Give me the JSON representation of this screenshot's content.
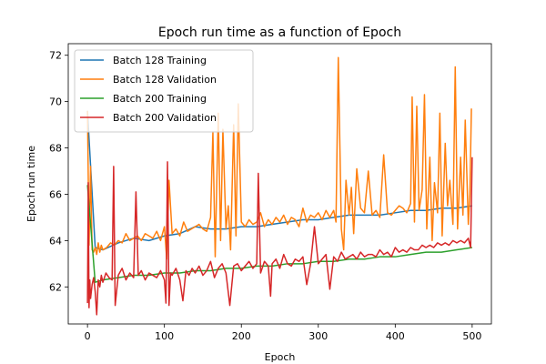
{
  "chart_data": {
    "type": "line",
    "title": "Epoch run time as a function of Epoch",
    "xlabel": "Epoch",
    "ylabel": "Epoch run time",
    "xlim": [
      -25,
      525
    ],
    "ylim": [
      60.4,
      72.5
    ],
    "xticks": [
      0,
      100,
      200,
      300,
      400,
      500
    ],
    "yticks": [
      62,
      64,
      66,
      68,
      70,
      72
    ],
    "grid": false,
    "legend_position": "top-left",
    "series": [
      {
        "name": "Batch 128 Training",
        "color": "#1f77b4",
        "x": [
          0,
          10,
          20,
          40,
          60,
          80,
          100,
          120,
          140,
          160,
          180,
          200,
          220,
          240,
          260,
          280,
          300,
          320,
          340,
          360,
          380,
          400,
          420,
          440,
          460,
          480,
          500
        ],
        "y": [
          69.6,
          63.7,
          63.6,
          63.9,
          64.1,
          64.0,
          64.2,
          64.3,
          64.6,
          64.5,
          64.5,
          64.6,
          64.6,
          64.7,
          64.8,
          64.9,
          64.9,
          65.0,
          65.1,
          65.1,
          65.1,
          65.2,
          65.3,
          65.3,
          65.4,
          65.4,
          65.5
        ]
      },
      {
        "name": "Batch 128 Validation",
        "color": "#ff7f0e",
        "x": [
          0,
          2,
          4,
          6,
          8,
          10,
          12,
          14,
          16,
          18,
          20,
          25,
          30,
          35,
          40,
          45,
          50,
          55,
          60,
          65,
          70,
          75,
          80,
          85,
          90,
          95,
          100,
          103,
          106,
          110,
          115,
          120,
          125,
          130,
          135,
          140,
          145,
          150,
          155,
          160,
          163,
          166,
          170,
          173,
          176,
          180,
          183,
          186,
          190,
          193,
          196,
          200,
          205,
          210,
          215,
          220,
          225,
          230,
          235,
          240,
          245,
          250,
          255,
          260,
          265,
          270,
          275,
          280,
          285,
          290,
          295,
          300,
          305,
          310,
          315,
          320,
          323,
          326,
          330,
          333,
          336,
          340,
          343,
          346,
          350,
          355,
          360,
          365,
          370,
          375,
          380,
          385,
          390,
          395,
          400,
          405,
          410,
          415,
          420,
          422,
          425,
          428,
          431,
          435,
          438,
          441,
          445,
          448,
          451,
          455,
          458,
          461,
          465,
          468,
          471,
          475,
          478,
          481,
          485,
          488,
          491,
          495,
          497,
          499
        ],
        "y": [
          69.6,
          63.8,
          67.2,
          63.6,
          63.5,
          63.7,
          63.4,
          63.9,
          63.5,
          63.8,
          63.6,
          63.7,
          63.9,
          63.8,
          64.0,
          63.9,
          64.3,
          64.0,
          64.1,
          64.2,
          64.0,
          64.3,
          64.2,
          64.1,
          64.4,
          64.0,
          64.6,
          63.2,
          66.6,
          64.3,
          64.5,
          64.2,
          64.8,
          64.4,
          64.5,
          64.6,
          64.7,
          64.5,
          64.4,
          65.0,
          68.7,
          63.3,
          69.5,
          64.0,
          68.8,
          64.5,
          65.5,
          63.6,
          69.0,
          64.2,
          69.9,
          64.8,
          64.6,
          64.9,
          64.7,
          64.8,
          65.2,
          64.6,
          64.9,
          64.7,
          65.0,
          64.8,
          65.1,
          64.7,
          65.0,
          64.9,
          64.6,
          65.4,
          64.8,
          65.1,
          65.0,
          65.2,
          64.9,
          65.3,
          65.0,
          65.3,
          64.8,
          71.9,
          64.5,
          63.6,
          66.6,
          65.1,
          66.3,
          64.3,
          67.1,
          65.4,
          65.2,
          67.0,
          65.1,
          65.3,
          65.0,
          67.7,
          65.2,
          65.1,
          65.3,
          65.5,
          65.4,
          65.2,
          65.6,
          70.2,
          64.8,
          69.8,
          65.3,
          66.2,
          70.3,
          64.5,
          67.6,
          64.0,
          66.5,
          65.2,
          69.5,
          64.2,
          68.2,
          65.5,
          66.6,
          64.7,
          71.5,
          64.5,
          67.6,
          65.1,
          69.2,
          64.7,
          66.0,
          69.7
        ]
      },
      {
        "name": "Batch 200 Training",
        "color": "#2ca02c",
        "x": [
          0,
          10,
          20,
          40,
          60,
          80,
          100,
          120,
          140,
          160,
          180,
          200,
          220,
          240,
          260,
          280,
          300,
          320,
          340,
          360,
          380,
          400,
          420,
          440,
          460,
          480,
          500
        ],
        "y": [
          66.4,
          62.2,
          62.3,
          62.4,
          62.5,
          62.5,
          62.6,
          62.6,
          62.7,
          62.7,
          62.8,
          62.8,
          62.9,
          62.9,
          63.0,
          63.0,
          63.1,
          63.1,
          63.2,
          63.2,
          63.3,
          63.3,
          63.4,
          63.5,
          63.5,
          63.6,
          63.7
        ]
      },
      {
        "name": "Batch 200 Validation",
        "color": "#d62728",
        "x": [
          0,
          1,
          2,
          3,
          4,
          6,
          8,
          10,
          12,
          14,
          16,
          18,
          20,
          24,
          28,
          32,
          34,
          36,
          40,
          45,
          50,
          55,
          60,
          63,
          66,
          70,
          75,
          80,
          85,
          90,
          95,
          100,
          102,
          104,
          106,
          108,
          110,
          115,
          120,
          124,
          128,
          132,
          136,
          140,
          145,
          150,
          155,
          160,
          165,
          170,
          175,
          180,
          185,
          190,
          195,
          200,
          205,
          210,
          215,
          220,
          222,
          225,
          230,
          235,
          238,
          240,
          245,
          250,
          255,
          260,
          265,
          270,
          275,
          280,
          285,
          290,
          295,
          300,
          305,
          310,
          315,
          320,
          325,
          330,
          335,
          340,
          345,
          350,
          355,
          360,
          365,
          370,
          375,
          380,
          385,
          390,
          395,
          400,
          405,
          410,
          415,
          420,
          425,
          430,
          435,
          440,
          445,
          450,
          455,
          460,
          465,
          470,
          475,
          480,
          485,
          490,
          495,
          498,
          500
        ],
        "y": [
          61.3,
          66.5,
          61.1,
          62.3,
          61.5,
          62.1,
          62.4,
          61.8,
          60.8,
          62.3,
          62.0,
          62.5,
          62.2,
          62.6,
          62.4,
          62.3,
          67.2,
          61.2,
          62.5,
          62.8,
          62.3,
          62.6,
          62.4,
          66.1,
          62.5,
          62.7,
          62.3,
          62.6,
          62.5,
          62.4,
          62.7,
          62.3,
          61.3,
          67.4,
          61.2,
          62.6,
          62.5,
          62.8,
          62.3,
          61.4,
          62.7,
          62.5,
          62.8,
          62.6,
          62.9,
          62.5,
          62.7,
          63.1,
          62.4,
          62.8,
          63.0,
          62.6,
          61.2,
          62.9,
          63.0,
          62.7,
          62.9,
          63.1,
          62.8,
          63.0,
          66.9,
          62.6,
          63.1,
          62.9,
          61.6,
          63.0,
          63.2,
          62.8,
          63.4,
          63.0,
          62.9,
          63.2,
          63.1,
          63.3,
          62.1,
          63.0,
          64.6,
          63.0,
          63.2,
          63.4,
          61.9,
          63.3,
          63.1,
          63.5,
          63.2,
          63.3,
          63.4,
          63.2,
          63.5,
          63.3,
          63.4,
          63.4,
          63.3,
          63.6,
          63.4,
          63.5,
          63.3,
          63.7,
          63.5,
          63.6,
          63.5,
          63.7,
          63.6,
          63.6,
          63.8,
          63.7,
          63.8,
          63.7,
          63.9,
          63.8,
          63.9,
          63.8,
          64.0,
          63.9,
          64.0,
          63.9,
          64.1,
          63.7,
          67.6
        ]
      }
    ]
  }
}
